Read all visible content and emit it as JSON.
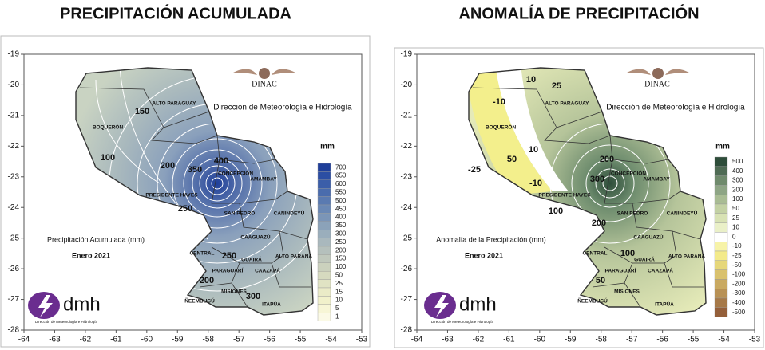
{
  "panels": [
    {
      "title": "PRECIPITACIÓN ACUMULADA",
      "logo": "DINAC",
      "institution": "Dirección de Meteorología e Hidrología",
      "legend": {
        "unit": "mm",
        "values": [
          700,
          650,
          600,
          550,
          500,
          450,
          400,
          350,
          300,
          250,
          200,
          150,
          100,
          50,
          25,
          15,
          10,
          5,
          1
        ],
        "colors": [
          "#1f3f9a",
          "#2c4ea3",
          "#3b5ea9",
          "#4a6cad",
          "#5a7ab1",
          "#6a88b5",
          "#7b95b7",
          "#8ba2b9",
          "#9aaebc",
          "#a9b8bd",
          "#b5c0bc",
          "#c0c8bc",
          "#cbd1bd",
          "#d6dabf",
          "#e0e3c3",
          "#eaebc7",
          "#f1f1cb",
          "#f7f6d6",
          "#fbfae6"
        ]
      },
      "caption": "Precipitación Acumulada (mm)",
      "period": "Enero 2021",
      "departments": [
        "ALTO PARAGUAY",
        "BOQUERÓN",
        "PRESIDENTE HAYES",
        "CONCEPCIÓN",
        "AMAMBAY",
        "SAN PEDRO",
        "CANINDEYÚ",
        "CAAGUAZÚ",
        "CENTRAL",
        "GUAIRÁ",
        "ALTO PARANÁ",
        "PARAGUARÍ",
        "CAAZAPÁ",
        "MISIONES",
        "ÑEEMBUCÚ",
        "ITAPÚA"
      ],
      "contour_labels": [
        150,
        100,
        200,
        350,
        400,
        250,
        250,
        200,
        300
      ],
      "yticks": [
        -19,
        -20,
        -21,
        -22,
        -23,
        -24,
        -25,
        -26,
        -27,
        -28
      ],
      "xticks": [
        -64,
        -63,
        -62,
        -61,
        -60,
        -59,
        -58,
        -57,
        -56,
        -55,
        -54,
        -53
      ],
      "brand": "dmh",
      "brand_subtitle": "Dirección de Meteorología e Hidrología"
    },
    {
      "title": "ANOMALÍA DE PRECIPITACIÓN",
      "logo": "DINAC",
      "institution": "Dirección de Meteorología e Hidrología",
      "legend": {
        "unit": "mm",
        "values": [
          500,
          400,
          300,
          200,
          100,
          50,
          25,
          10,
          0,
          -10,
          -25,
          -50,
          -100,
          -200,
          -300,
          -400,
          -500
        ],
        "colors": [
          "#2e4d3a",
          "#4f6b54",
          "#6f8a6c",
          "#8ea585",
          "#a9bc94",
          "#c3d1a4",
          "#d8e2b4",
          "#eaf0c8",
          "#ffffff",
          "#f7f3a8",
          "#f3ea8a",
          "#e6d77a",
          "#d9c16d",
          "#c9a961",
          "#b89155",
          "#a67948",
          "#945f3a"
        ]
      },
      "caption": "Anomalía de la Precipitación (mm)",
      "period": "Enero 2021",
      "departments": [
        "ALTO PARAGUAY",
        "BOQUERÓN",
        "PRESIDENTE HAYES",
        "CONCEPCIÓN",
        "AMAMBAY",
        "SAN PEDRO",
        "CANINDEYÚ",
        "CAAGUAZÚ",
        "CENTRAL",
        "GUAIRÁ",
        "ALTO PARANÁ",
        "PARAGUARÍ",
        "CAAZAPÁ",
        "MISIONES",
        "ÑEEMBUCÚ",
        "ITAPÚA"
      ],
      "contour_labels": [
        -10,
        10,
        25,
        10,
        50,
        -25,
        -10,
        200,
        300,
        100,
        200,
        100,
        50
      ],
      "yticks": [
        -19,
        -20,
        -21,
        -22,
        -23,
        -24,
        -25,
        -26,
        -27,
        -28
      ],
      "xticks": [
        -64,
        -63,
        -62,
        -61,
        -60,
        -59,
        -58,
        -57,
        -56,
        -55,
        -54,
        -53
      ],
      "brand": "dmh",
      "brand_subtitle": "Dirección de Meteorología e Hidrología"
    }
  ]
}
